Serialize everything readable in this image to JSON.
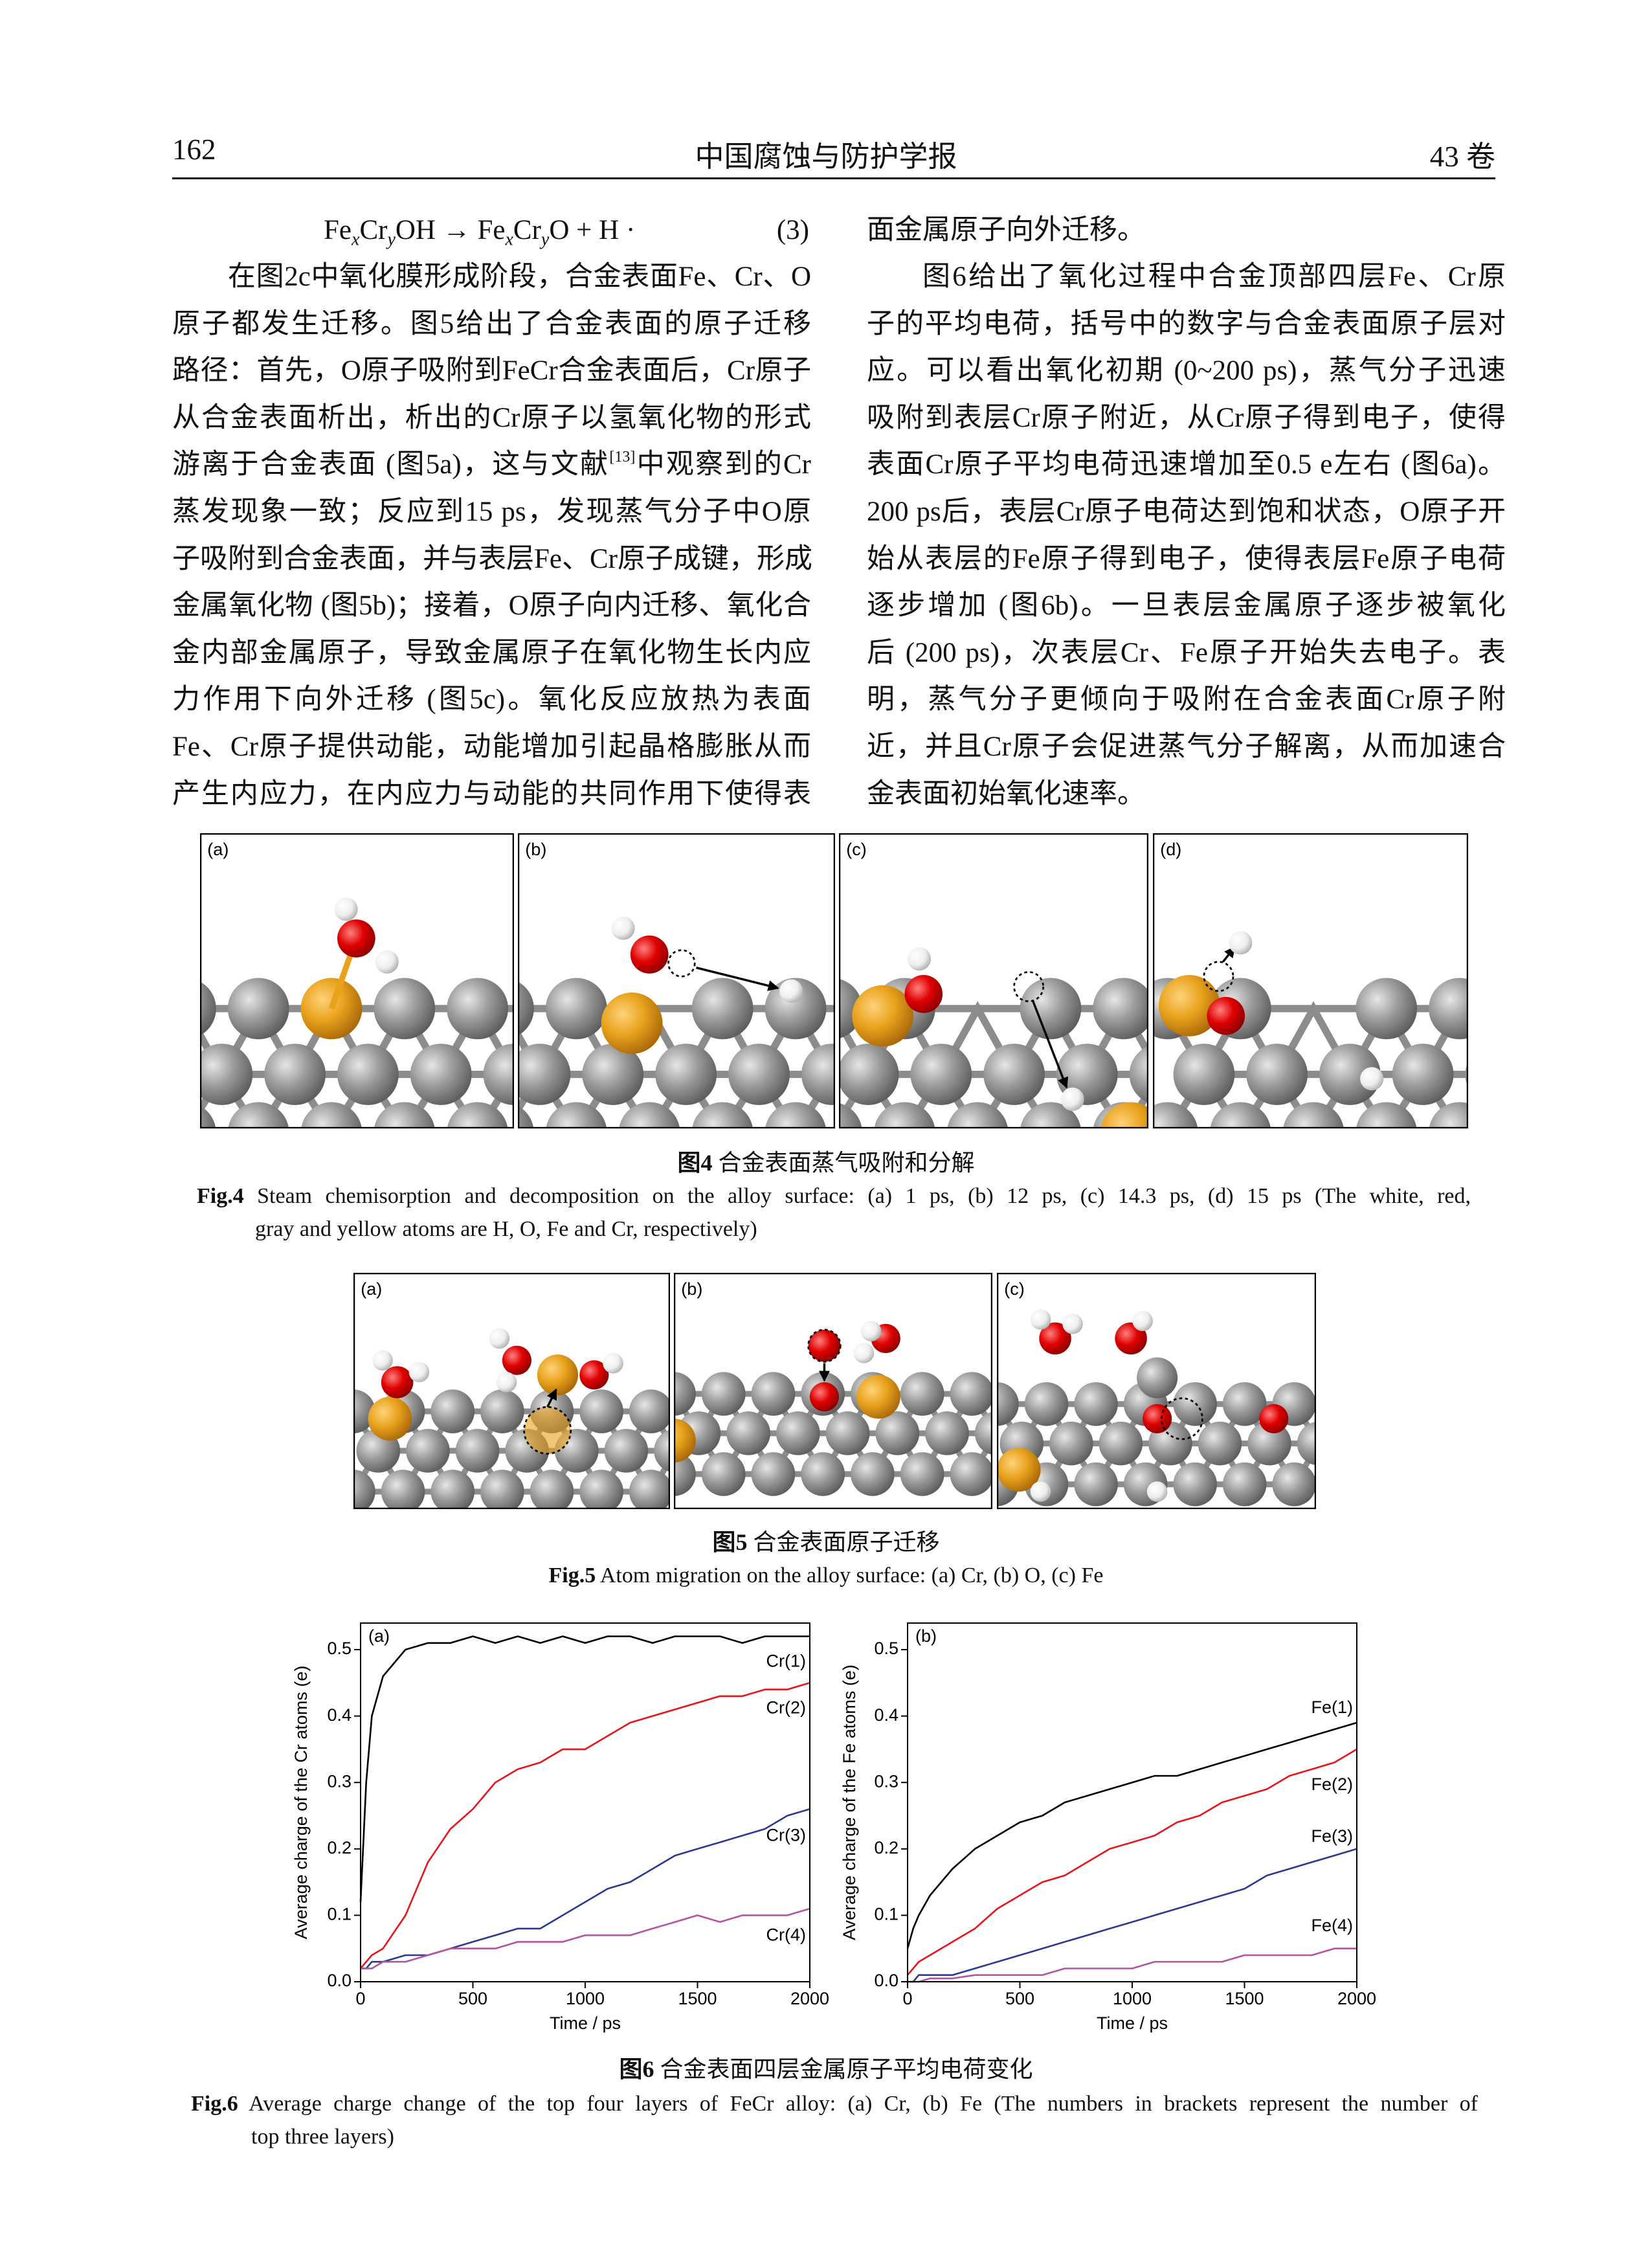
{
  "header": {
    "page_number": "162",
    "journal": "中国腐蚀与防护学报",
    "volume": "43 卷"
  },
  "left_column": {
    "equation": {
      "parts": [
        "Fe",
        "x",
        "Cr",
        "y",
        "OH → Fe",
        "x",
        "Cr",
        "y",
        "O + H ·"
      ],
      "number": "(3)"
    },
    "paragraph_lines": [
      "在图2c中氧化膜形成阶段，合金表面Fe、Cr、O",
      "原子都发生迁移。图5给出了合金表面的原子迁移",
      "路径：首先，O原子吸附到FeCr合金表面后，Cr原子",
      "从合金表面析出，析出的Cr原子以氢氧化物的形式",
      {
        "before": "游离于合金表面 (图5a)，这与文献",
        "sup": "[13]",
        "after": "中观察到的Cr"
      },
      "蒸发现象一致；反应到15 ps，发现蒸气分子中O原",
      "子吸附到合金表面，并与表层Fe、Cr原子成键，形成",
      "金属氧化物 (图5b)；接着，O原子向内迁移、氧化合",
      "金内部金属原子，导致金属原子在氧化物生长内应",
      "力作用下向外迁移 (图5c)。氧化反应放热为表面",
      "Fe、Cr原子提供动能，动能增加引起晶格膨胀从而",
      "产生内应力，在内应力与动能的共同作用下使得表"
    ]
  },
  "right_column": {
    "paragraph_1_end": "面金属原子向外迁移。",
    "paragraph_2_lines": [
      "图6给出了氧化过程中合金顶部四层Fe、Cr原",
      "子的平均电荷，括号中的数字与合金表面原子层对",
      "应。可以看出氧化初期 (0~200 ps)，蒸气分子迅速",
      "吸附到表层Cr原子附近，从Cr原子得到电子，使得",
      "表面Cr原子平均电荷迅速增加至0.5 e左右 (图6a)。",
      "200 ps后，表层Cr原子电荷达到饱和状态，O原子开",
      "始从表层的Fe原子得到电子，使得表层Fe原子电荷",
      "逐步增加 (图6b)。一旦表层金属原子逐步被氧化",
      "后 (200 ps)，次表层Cr、Fe原子开始失去电子。表",
      "明，蒸气分子更倾向于吸附在合金表面Cr原子附",
      "近，并且Cr原子会促进蒸气分子解离，从而加速合",
      "金表面初始氧化速率。"
    ]
  },
  "figure_4": {
    "panel_labels": [
      "(a)",
      "(b)",
      "(c)",
      "(d)"
    ],
    "caption_cn": {
      "label": "图4",
      "text": "合金表面蒸气吸附和分解"
    },
    "caption_en": {
      "label": "Fig.4",
      "lines": [
        "Steam chemisorption and decomposition on the alloy surface: (a) 1 ps, (b) 12 ps, (c) 14.3 ps, (d) 15 ps  (The white, red,",
        "gray and yellow atoms are H, O, Fe and Cr, respectively)"
      ]
    }
  },
  "figure_5": {
    "panel_labels": [
      "(a)",
      "(b)",
      "(c)"
    ],
    "caption_cn": {
      "label": "图5",
      "text": "合金表面原子迁移"
    },
    "caption_en": {
      "label": "Fig.5",
      "lines": [
        "Atom migration on the alloy surface: (a) Cr, (b) O, (c) Fe"
      ]
    }
  },
  "figure_6": {
    "caption_cn": {
      "label": "图6",
      "text": "合金表面四层金属原子平均电荷变化"
    },
    "caption_en": {
      "label": "Fig.6",
      "lines": [
        "Average charge change of the top four layers of FeCr alloy: (a) Cr, (b) Fe (The numbers in brackets represent the number of",
        "top three layers)"
      ]
    }
  },
  "chart_data": [
    {
      "type": "line",
      "panel_label": "(a)",
      "xlabel": "Time / ps",
      "ylabel": "Average charge of the Cr atoms (e)",
      "xlim": [
        0,
        2000
      ],
      "xticks": [
        0,
        500,
        1000,
        1500,
        2000
      ],
      "ylim": [
        0,
        0.54
      ],
      "yticks": [
        {
          "value": 0,
          "label": "0.0"
        },
        0.1,
        0.2,
        0.3,
        0.4,
        0.5
      ],
      "x": [
        0,
        25,
        50,
        100,
        200,
        300,
        400,
        500,
        600,
        700,
        800,
        900,
        1000,
        1100,
        1200,
        1300,
        1400,
        1500,
        1600,
        1700,
        1800,
        1900,
        2000
      ],
      "series": [
        {
          "name": "Cr(1)",
          "color": "#000000",
          "values": [
            0.12,
            0.3,
            0.4,
            0.46,
            0.5,
            0.51,
            0.51,
            0.52,
            0.51,
            0.52,
            0.51,
            0.52,
            0.51,
            0.52,
            0.52,
            0.51,
            0.52,
            0.52,
            0.52,
            0.51,
            0.52,
            0.52,
            0.52
          ]
        },
        {
          "name": "Cr(2)",
          "color": "#e8141b",
          "values": [
            0.02,
            0.03,
            0.04,
            0.05,
            0.1,
            0.18,
            0.23,
            0.26,
            0.3,
            0.32,
            0.33,
            0.35,
            0.35,
            0.37,
            0.39,
            0.4,
            0.41,
            0.42,
            0.43,
            0.43,
            0.44,
            0.44,
            0.45
          ]
        },
        {
          "name": "Cr(3)",
          "color": "#2b3990",
          "values": [
            0.02,
            0.02,
            0.03,
            0.03,
            0.04,
            0.04,
            0.05,
            0.06,
            0.07,
            0.08,
            0.08,
            0.1,
            0.12,
            0.14,
            0.15,
            0.17,
            0.19,
            0.2,
            0.21,
            0.22,
            0.23,
            0.25,
            0.26
          ]
        },
        {
          "name": "Cr(4)",
          "color": "#b5539f",
          "values": [
            0.02,
            0.02,
            0.02,
            0.03,
            0.03,
            0.04,
            0.05,
            0.05,
            0.05,
            0.06,
            0.06,
            0.06,
            0.07,
            0.07,
            0.07,
            0.08,
            0.09,
            0.1,
            0.09,
            0.1,
            0.1,
            0.1,
            0.11
          ]
        }
      ]
    },
    {
      "type": "line",
      "panel_label": "(b)",
      "xlabel": "Time / ps",
      "ylabel": "Average charge of the Fe atoms (e)",
      "xlim": [
        0,
        2000
      ],
      "xticks": [
        0,
        500,
        1000,
        1500,
        2000
      ],
      "ylim": [
        0,
        0.54
      ],
      "yticks": [
        {
          "value": 0,
          "label": "0.0"
        },
        0.1,
        0.2,
        0.3,
        0.4,
        0.5
      ],
      "x": [
        0,
        25,
        50,
        100,
        200,
        300,
        400,
        500,
        600,
        700,
        800,
        900,
        1000,
        1100,
        1200,
        1300,
        1400,
        1500,
        1600,
        1700,
        1800,
        1900,
        2000
      ],
      "series": [
        {
          "name": "Fe(1)",
          "color": "#000000",
          "values": [
            0.05,
            0.08,
            0.1,
            0.13,
            0.17,
            0.2,
            0.22,
            0.24,
            0.25,
            0.27,
            0.28,
            0.29,
            0.3,
            0.31,
            0.31,
            0.32,
            0.33,
            0.34,
            0.35,
            0.36,
            0.37,
            0.38,
            0.39
          ]
        },
        {
          "name": "Fe(2)",
          "color": "#e8141b",
          "values": [
            0.01,
            0.02,
            0.03,
            0.04,
            0.06,
            0.08,
            0.11,
            0.13,
            0.15,
            0.16,
            0.18,
            0.2,
            0.21,
            0.22,
            0.24,
            0.25,
            0.27,
            0.28,
            0.29,
            0.31,
            0.32,
            0.33,
            0.35
          ]
        },
        {
          "name": "Fe(3)",
          "color": "#2b3990",
          "values": [
            0,
            0,
            0.01,
            0.01,
            0.01,
            0.02,
            0.03,
            0.04,
            0.05,
            0.06,
            0.07,
            0.08,
            0.09,
            0.1,
            0.11,
            0.12,
            0.13,
            0.14,
            0.16,
            0.17,
            0.18,
            0.19,
            0.2
          ]
        },
        {
          "name": "Fe(4)",
          "color": "#b5539f",
          "values": [
            0,
            0,
            0,
            0.005,
            0.005,
            0.01,
            0.01,
            0.01,
            0.01,
            0.02,
            0.02,
            0.02,
            0.02,
            0.03,
            0.03,
            0.03,
            0.03,
            0.04,
            0.04,
            0.04,
            0.04,
            0.05,
            0.05
          ]
        }
      ]
    }
  ]
}
